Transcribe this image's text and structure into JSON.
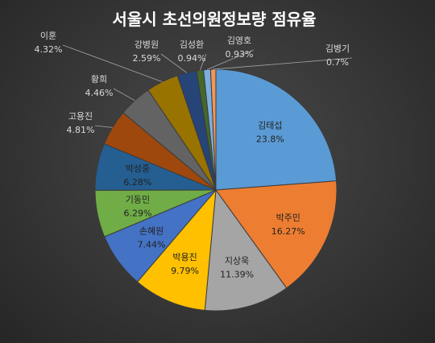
{
  "chart_data": {
    "type": "pie",
    "title": "서울시 초선의원정보량 점유율",
    "slices": [
      {
        "label": "김태섭",
        "value_label": "23.8%",
        "value": 23.8,
        "color": "#5b9bd5",
        "label_pos": "inside"
      },
      {
        "label": "박주민",
        "value_label": "16.27%",
        "value": 16.27,
        "color": "#ed7d31",
        "label_pos": "inside"
      },
      {
        "label": "지상욱",
        "value_label": "11.39%",
        "value": 11.39,
        "color": "#a5a5a5",
        "label_pos": "inside"
      },
      {
        "label": "박용진",
        "value_label": "9.79%",
        "value": 9.79,
        "color": "#ffc000",
        "label_pos": "inside"
      },
      {
        "label": "손혜원",
        "value_label": "7.44%",
        "value": 7.44,
        "color": "#4472c4",
        "label_pos": "inside"
      },
      {
        "label": "기동민",
        "value_label": "6.29%",
        "value": 6.29,
        "color": "#70ad47",
        "label_pos": "inside"
      },
      {
        "label": "박성중",
        "value_label": "6.28%",
        "value": 6.28,
        "color": "#255e91",
        "label_pos": "inside"
      },
      {
        "label": "고용진",
        "value_label": "4.81%",
        "value": 4.81,
        "color": "#9e480e",
        "label_pos": "outside"
      },
      {
        "label": "황희",
        "value_label": "4.46%",
        "value": 4.46,
        "color": "#636363",
        "label_pos": "outside"
      },
      {
        "label": "이훈",
        "value_label": "4.32%",
        "value": 4.32,
        "color": "#997300",
        "label_pos": "outside"
      },
      {
        "label": "강병원",
        "value_label": "2.59%",
        "value": 2.59,
        "color": "#264478",
        "label_pos": "outside"
      },
      {
        "label": "김성환",
        "value_label": "0.94%",
        "value": 0.94,
        "color": "#43682b",
        "label_pos": "outside"
      },
      {
        "label": "김영호",
        "value_label": "0.93%",
        "value": 0.93,
        "color": "#7cafdd",
        "label_pos": "outside"
      },
      {
        "label": "김병기",
        "value_label": "0.7%",
        "value": 0.7,
        "color": "#f1975a",
        "label_pos": "outside"
      }
    ]
  }
}
